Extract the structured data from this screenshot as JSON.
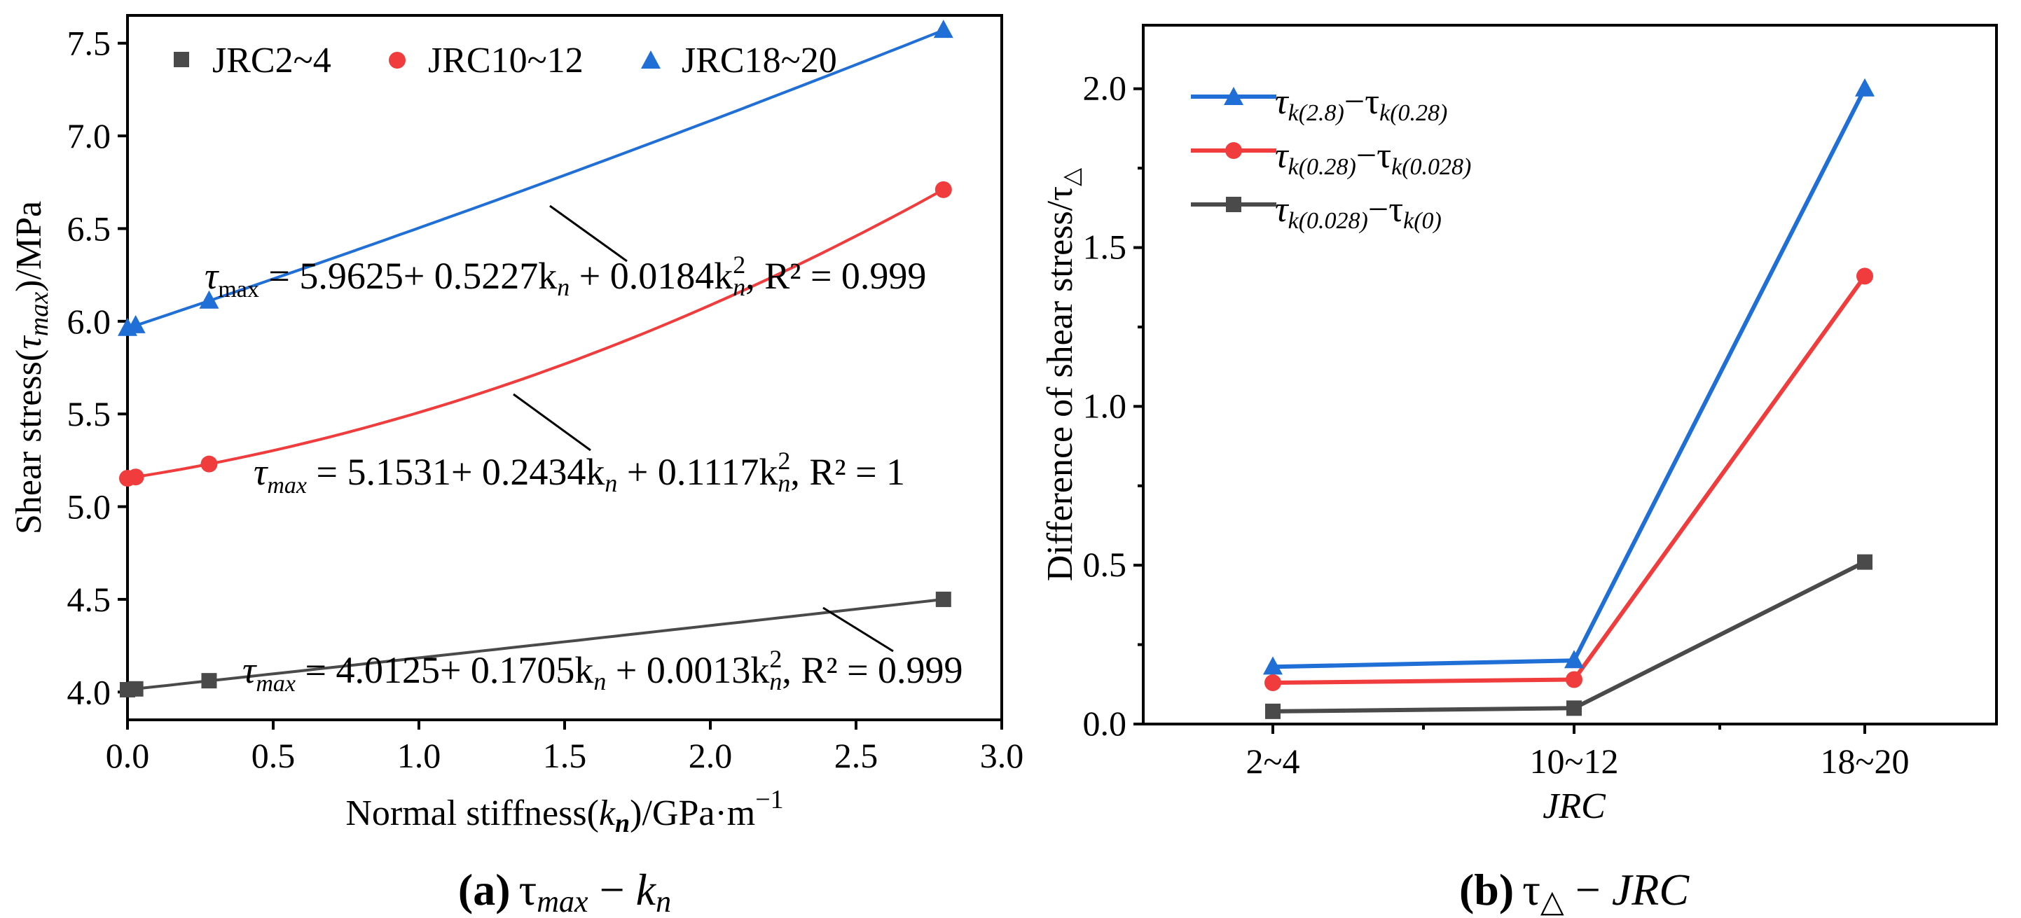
{
  "chart_data": [
    {
      "type": "scatter",
      "panel": "a",
      "xlabel": "Normal stiffness(k_n)/GPa·m⁻¹",
      "ylabel": "Shear stress(τmax)/MPa",
      "xlim": [
        0,
        3.0
      ],
      "ylim": [
        3.85,
        7.65
      ],
      "xticks": [
        "0.0",
        "0.5",
        "1.0",
        "1.5",
        "2.0",
        "2.5",
        "3.0"
      ],
      "yticks": [
        "4.0",
        "4.5",
        "5.0",
        "5.5",
        "6.0",
        "6.5",
        "7.0",
        "7.5"
      ],
      "legend_position": "top",
      "series": [
        {
          "name": "JRC2~4",
          "marker": "square",
          "color": "#4a4a4a",
          "x": [
            0,
            0.028,
            0.28,
            2.8
          ],
          "y": [
            4.0125,
            4.017,
            4.061,
            4.5
          ],
          "fit": {
            "a": 4.0125,
            "b": 0.1705,
            "c": 0.0013
          }
        },
        {
          "name": "JRC10~12",
          "marker": "circle",
          "color": "#f03c3c",
          "x": [
            0,
            0.028,
            0.28,
            2.8
          ],
          "y": [
            5.1531,
            5.16,
            5.23,
            6.71
          ],
          "fit": {
            "a": 5.1531,
            "b": 0.2434,
            "c": 0.1117
          }
        },
        {
          "name": "JRC18~20",
          "marker": "triangle",
          "color": "#1f6fd6",
          "x": [
            0,
            0.028,
            0.28,
            2.8
          ],
          "y": [
            5.9625,
            5.977,
            6.11,
            7.57
          ],
          "fit": {
            "a": 5.9625,
            "b": 0.5227,
            "c": 0.0184
          }
        }
      ],
      "equations": [
        {
          "prefix": "τ",
          "sub": "max",
          "body": " = 5.9625+ 0.5227k",
          "mid": " + 0.0184k",
          "tail": ", R² = 0.999"
        },
        {
          "prefix": "τ",
          "sub": "max",
          "body": " = 5.1531+ 0.2434k",
          "mid": " + 0.1117k",
          "tail": ", R² = 1"
        },
        {
          "prefix": "τ",
          "sub": "max",
          "body": " = 4.0125+ 0.1705k",
          "mid": " + 0.0013k",
          "tail": ", R² = 0.999"
        }
      ],
      "caption": {
        "letter": "(a)",
        "text": " τmax − kn"
      }
    },
    {
      "type": "line",
      "panel": "b",
      "xlabel": "JRC",
      "ylabel": "Difference of shear stress/τ△",
      "categories": [
        "2~4",
        "10~12",
        "18~20"
      ],
      "ylim": [
        0,
        2.2
      ],
      "yticks": [
        "0.0",
        "0.5",
        "1.0",
        "1.5",
        "2.0"
      ],
      "legend_position": "top-left",
      "series": [
        {
          "name": "τk(2.8)−τk(0.28)",
          "marker": "triangle",
          "color": "#1f6fd6",
          "values": [
            0.18,
            0.2,
            2.0
          ]
        },
        {
          "name": "τk(0.28)−τk(0.028)",
          "marker": "circle",
          "color": "#f03c3c",
          "values": [
            0.13,
            0.14,
            1.41
          ]
        },
        {
          "name": "τk(0.028)−τk(0)",
          "marker": "square",
          "color": "#4a4a4a",
          "values": [
            0.04,
            0.05,
            0.51
          ]
        }
      ],
      "legend_labels": [
        {
          "a": "τ",
          "s1": "k(2.8)",
          "m": "−τ",
          "s2": "k(0.28)"
        },
        {
          "a": "τ",
          "s1": "k(0.28)",
          "m": "−τ",
          "s2": "k(0.028)"
        },
        {
          "a": "τ",
          "s1": "k(0.028)",
          "m": "−τ",
          "s2": "k(0)"
        }
      ],
      "caption": {
        "letter": "(b)",
        "text": " τ△ − JRC"
      }
    }
  ]
}
